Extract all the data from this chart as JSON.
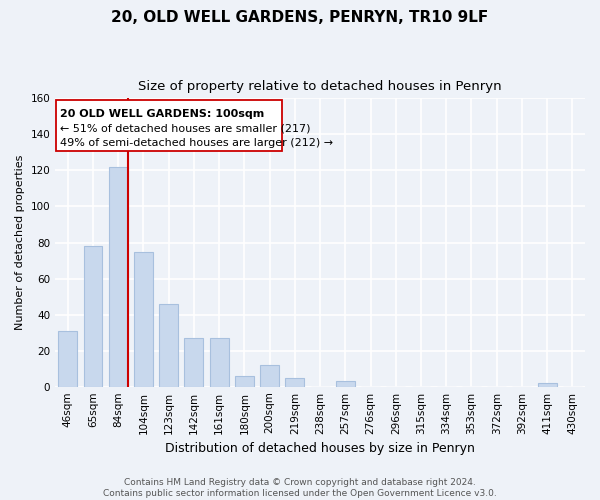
{
  "title": "20, OLD WELL GARDENS, PENRYN, TR10 9LF",
  "subtitle": "Size of property relative to detached houses in Penryn",
  "xlabel": "Distribution of detached houses by size in Penryn",
  "ylabel": "Number of detached properties",
  "bar_labels": [
    "46sqm",
    "65sqm",
    "84sqm",
    "104sqm",
    "123sqm",
    "142sqm",
    "161sqm",
    "180sqm",
    "200sqm",
    "219sqm",
    "238sqm",
    "257sqm",
    "276sqm",
    "296sqm",
    "315sqm",
    "334sqm",
    "353sqm",
    "372sqm",
    "392sqm",
    "411sqm",
    "430sqm"
  ],
  "bar_values": [
    31,
    78,
    122,
    75,
    46,
    27,
    27,
    6,
    12,
    5,
    0,
    3,
    0,
    0,
    0,
    0,
    0,
    0,
    0,
    2,
    0
  ],
  "bar_color": "#c8d8ed",
  "bar_edge_color": "#a8c0de",
  "ylim": [
    0,
    160
  ],
  "yticks": [
    0,
    20,
    40,
    60,
    80,
    100,
    120,
    140,
    160
  ],
  "property_line_color": "#cc0000",
  "annotation_title": "20 OLD WELL GARDENS: 100sqm",
  "annotation_line1": "← 51% of detached houses are smaller (217)",
  "annotation_line2": "49% of semi-detached houses are larger (212) →",
  "annotation_box_color": "#ffffff",
  "annotation_box_edge_color": "#cc0000",
  "footer_line1": "Contains HM Land Registry data © Crown copyright and database right 2024.",
  "footer_line2": "Contains public sector information licensed under the Open Government Licence v3.0.",
  "background_color": "#eef2f8",
  "grid_color": "#ffffff",
  "title_fontsize": 11,
  "subtitle_fontsize": 9.5,
  "xlabel_fontsize": 9,
  "ylabel_fontsize": 8,
  "tick_fontsize": 7.5,
  "footer_fontsize": 6.5
}
